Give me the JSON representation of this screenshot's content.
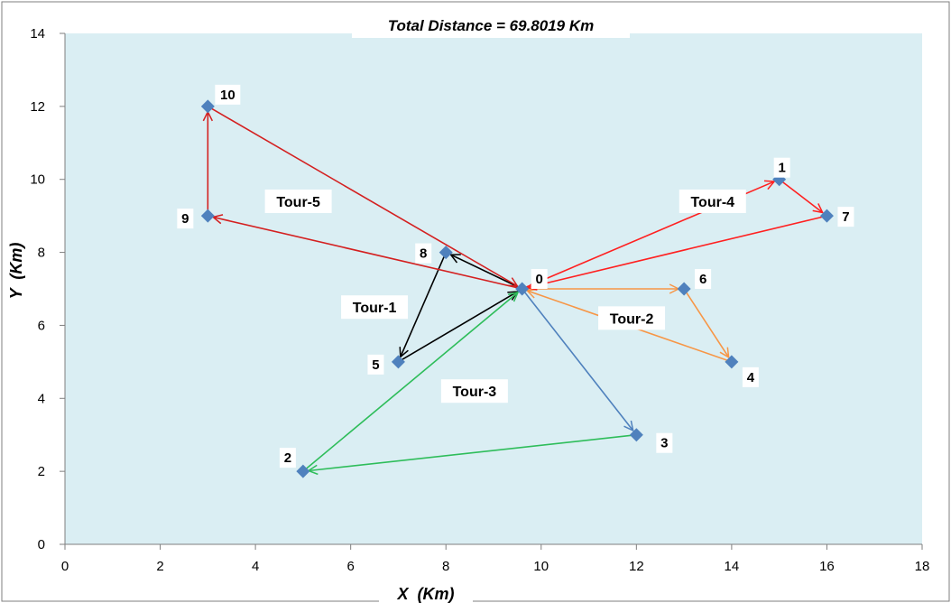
{
  "chart_data": {
    "type": "scatter",
    "title": "Total Distance = 69.8019 Km",
    "xlabel": "X  (Km)",
    "ylabel": "Y  (Km)",
    "xlim": [
      0,
      18
    ],
    "ylim": [
      0,
      14
    ],
    "xticks": [
      "0",
      "2",
      "4",
      "6",
      "8",
      "10",
      "12",
      "14",
      "16",
      "18"
    ],
    "yticks": [
      "0",
      "2",
      "4",
      "6",
      "8",
      "10",
      "12",
      "14"
    ],
    "grid": false,
    "plot_background": "#daeef3",
    "marker_color": "#4f81bd",
    "points": [
      {
        "label": "0",
        "x": 9.6,
        "y": 7
      },
      {
        "label": "1",
        "x": 15,
        "y": 10
      },
      {
        "label": "2",
        "x": 5,
        "y": 2
      },
      {
        "label": "3",
        "x": 12,
        "y": 3
      },
      {
        "label": "4",
        "x": 14,
        "y": 5
      },
      {
        "label": "5",
        "x": 7,
        "y": 5
      },
      {
        "label": "6",
        "x": 13,
        "y": 7
      },
      {
        "label": "7",
        "x": 16,
        "y": 9
      },
      {
        "label": "8",
        "x": 8,
        "y": 8
      },
      {
        "label": "9",
        "x": 3,
        "y": 9
      },
      {
        "label": "10",
        "x": 3,
        "y": 12
      }
    ],
    "tours": [
      {
        "name": "Tour-1",
        "color": "#000000",
        "route": [
          "0",
          "8",
          "5",
          "0"
        ],
        "label_at": {
          "x": 6.5,
          "y": 6.5
        }
      },
      {
        "name": "Tour-2",
        "color": "#f79646",
        "route": [
          "0",
          "6",
          "4",
          "0"
        ],
        "label_at": {
          "x": 11.9,
          "y": 6.2
        }
      },
      {
        "name": "Tour-3",
        "color": "#2e8b57",
        "segments_colors": [
          "#4f81bd",
          "#2ebd5a",
          "#2ebd5a"
        ],
        "route": [
          "0",
          "3",
          "2",
          "0"
        ],
        "label_at": {
          "x": 8.6,
          "y": 4.2
        }
      },
      {
        "name": "Tour-4",
        "color": "#ff2020",
        "route": [
          "0",
          "1",
          "7",
          "0"
        ],
        "label_at": {
          "x": 13.6,
          "y": 9.4
        }
      },
      {
        "name": "Tour-5",
        "color": "#d42020",
        "route": [
          "0",
          "9",
          "10",
          "0"
        ],
        "label_at": {
          "x": 4.9,
          "y": 9.4
        }
      }
    ]
  }
}
